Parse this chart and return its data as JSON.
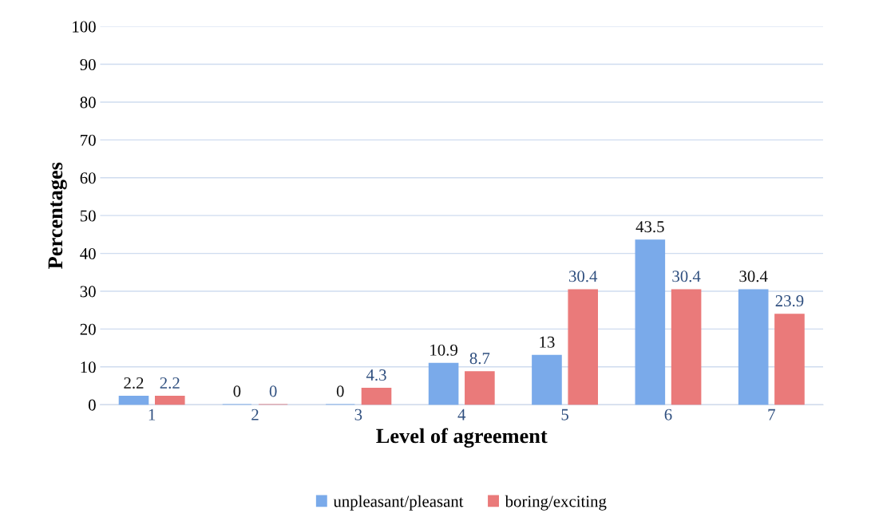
{
  "chart_data": {
    "type": "bar",
    "xlabel": "Level of agreement",
    "ylabel": "Percentages",
    "categories": [
      "1",
      "2",
      "3",
      "4",
      "5",
      "6",
      "7"
    ],
    "series": [
      {
        "name": "unpleasant/pleasant",
        "color": "#7aaaea",
        "values": [
          2.2,
          0,
          0,
          10.9,
          13,
          43.5,
          30.4
        ]
      },
      {
        "name": "boring/exciting",
        "color": "#ea7a7a",
        "values": [
          2.2,
          0,
          4.3,
          8.7,
          30.4,
          30.4,
          23.9
        ]
      }
    ],
    "ylim": [
      0,
      100
    ],
    "yticks": [
      0,
      10,
      20,
      30,
      40,
      50,
      60,
      70,
      80,
      90,
      100
    ],
    "grid": "y",
    "legend": "bottom",
    "data_labels": true
  }
}
